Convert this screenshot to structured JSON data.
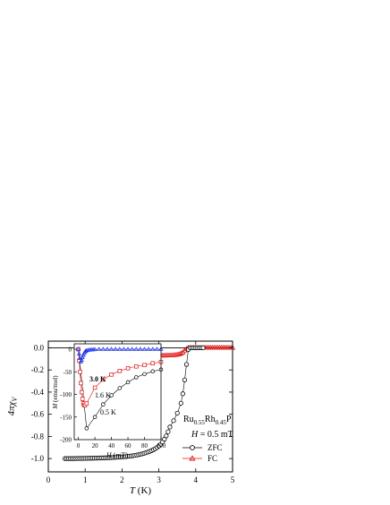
{
  "chart_data": [
    {
      "type": "scatter",
      "xlabel_italic": "T",
      "xlabel_unit": " (K)",
      "ylabel_main": "4πχ",
      "ylabel_sub": "V",
      "xlim": [
        0,
        5
      ],
      "ylim": [
        -1.12,
        0.06
      ],
      "xticks": [
        "0",
        "1",
        "2",
        "3",
        "4",
        "5"
      ],
      "yticks": [
        "0.0",
        "-0.2",
        "-0.4",
        "-0.6",
        "-0.8",
        "-1.0"
      ],
      "reference_line_y": 0,
      "annotation": {
        "compound_parts": [
          [
            "Ru",
            false
          ],
          [
            "0.55",
            true
          ],
          [
            "Rh",
            false
          ],
          [
            "0.45",
            true
          ],
          [
            "P",
            false
          ]
        ],
        "field_italic": "H",
        "field_rest": " = 0.5 mT"
      },
      "legend_position": "bottom-right",
      "series": [
        {
          "name": "ZFC",
          "marker": "circle",
          "color": "#000000",
          "x": [
            0.45,
            0.5,
            0.55,
            0.6,
            0.65,
            0.7,
            0.75,
            0.8,
            0.85,
            0.9,
            0.95,
            1.0,
            1.05,
            1.1,
            1.15,
            1.2,
            1.25,
            1.3,
            1.35,
            1.4,
            1.45,
            1.5,
            1.55,
            1.6,
            1.65,
            1.7,
            1.75,
            1.8,
            1.85,
            1.9,
            1.95,
            2.0,
            2.05,
            2.1,
            2.15,
            2.2,
            2.25,
            2.3,
            2.35,
            2.4,
            2.45,
            2.5,
            2.55,
            2.6,
            2.65,
            2.7,
            2.75,
            2.8,
            2.85,
            2.9,
            2.95,
            3.0,
            3.05,
            3.1,
            3.15,
            3.2,
            3.25,
            3.3,
            3.4,
            3.5,
            3.6,
            3.65,
            3.7,
            3.75,
            3.8,
            3.85,
            3.9,
            3.95,
            4.0,
            4.05,
            4.1,
            4.15,
            4.2
          ],
          "y": [
            -1.0,
            -1.0,
            -1.0,
            -1.0,
            -1.0,
            -1.0,
            -0.999,
            -0.999,
            -0.999,
            -0.999,
            -0.998,
            -0.998,
            -0.998,
            -0.997,
            -0.997,
            -0.997,
            -0.996,
            -0.996,
            -0.995,
            -0.995,
            -0.994,
            -0.994,
            -0.993,
            -0.992,
            -0.992,
            -0.991,
            -0.99,
            -0.989,
            -0.988,
            -0.987,
            -0.986,
            -0.985,
            -0.983,
            -0.982,
            -0.98,
            -0.978,
            -0.976,
            -0.974,
            -0.971,
            -0.968,
            -0.965,
            -0.961,
            -0.957,
            -0.952,
            -0.947,
            -0.941,
            -0.935,
            -0.928,
            -0.92,
            -0.911,
            -0.9,
            -0.887,
            -0.87,
            -0.85,
            -0.825,
            -0.795,
            -0.758,
            -0.715,
            -0.658,
            -0.59,
            -0.5,
            -0.415,
            -0.29,
            -0.15,
            -0.015,
            0.0,
            0.0,
            0.0,
            0.0,
            0.0,
            0.0,
            0.0,
            0.0
          ]
        },
        {
          "name": "FC",
          "marker": "triangle",
          "color": "#e01010",
          "x": [
            1.8,
            1.85,
            1.9,
            1.95,
            2.0,
            2.05,
            2.1,
            2.15,
            2.2,
            2.25,
            2.3,
            2.35,
            2.4,
            2.45,
            2.5,
            2.55,
            2.6,
            2.65,
            2.7,
            2.75,
            2.8,
            2.85,
            2.9,
            2.95,
            3.0,
            3.05,
            3.1,
            3.15,
            3.2,
            3.25,
            3.3,
            3.35,
            3.4,
            3.45,
            3.5,
            3.55,
            3.6,
            3.65,
            3.7,
            3.75,
            3.8,
            3.85,
            3.9,
            3.95,
            4.0,
            4.05,
            4.1,
            4.15,
            4.2,
            4.25,
            4.3,
            4.35,
            4.4,
            4.45,
            4.5,
            4.55,
            4.6,
            4.65,
            4.7,
            4.75,
            4.8,
            4.85,
            4.9,
            4.95,
            5.0
          ],
          "y": [
            -0.07,
            -0.07,
            -0.07,
            -0.07,
            -0.07,
            -0.07,
            -0.07,
            -0.07,
            -0.07,
            -0.07,
            -0.07,
            -0.07,
            -0.07,
            -0.07,
            -0.07,
            -0.07,
            -0.07,
            -0.07,
            -0.07,
            -0.07,
            -0.07,
            -0.07,
            -0.07,
            -0.07,
            -0.07,
            -0.07,
            -0.07,
            -0.07,
            -0.07,
            -0.069,
            -0.069,
            -0.068,
            -0.067,
            -0.065,
            -0.062,
            -0.058,
            -0.052,
            -0.042,
            -0.025,
            -0.01,
            0.0,
            0.0,
            0.0,
            0.0,
            0.0,
            0.0,
            0.0,
            0.0,
            0.0,
            0.0,
            0.0,
            0.0,
            0.0,
            0.0,
            0.0,
            0.0,
            0.0,
            0.0,
            0.0,
            0.0,
            0.0,
            0.0,
            0.0,
            0.0,
            0.0
          ]
        }
      ]
    },
    {
      "type": "line",
      "xlabel_italic": "H",
      "xlabel_unit": " (mT)",
      "ylabel_italic": "M",
      "ylabel_unit": " (emu/mol)",
      "xlim": [
        -5,
        100
      ],
      "ylim": [
        -200,
        12
      ],
      "xticks": [
        "0",
        "20",
        "40",
        "60",
        "80",
        "100"
      ],
      "yticks": [
        "0",
        "-50",
        "-100",
        "-150",
        "-200"
      ],
      "series": [
        {
          "name": "3.0 K",
          "color": "#1a2ee6",
          "marker": "triangle",
          "x": [
            0,
            1,
            2,
            3,
            4,
            5,
            6,
            7,
            8,
            9,
            10,
            12,
            14,
            16,
            18,
            20,
            25,
            30,
            35,
            40,
            45,
            50,
            55,
            60,
            65,
            70,
            75,
            80,
            85,
            90,
            95,
            100
          ],
          "y": [
            0,
            -10,
            -20,
            -28,
            -24,
            -18,
            -13,
            -9,
            -6,
            -4,
            -3,
            -2,
            -1.5,
            -1,
            -1,
            -0.5,
            0,
            0,
            0,
            0,
            0,
            0,
            0,
            0,
            0,
            0,
            0,
            0,
            0,
            0,
            0,
            0
          ]
        },
        {
          "name": "1.6 K",
          "color": "#e01010",
          "marker": "square",
          "x": [
            0,
            1,
            2,
            3,
            4,
            5,
            6,
            7,
            8,
            10,
            20,
            30,
            40,
            50,
            60,
            70,
            80,
            90,
            100
          ],
          "y": [
            0,
            -25,
            -50,
            -75,
            -95,
            -110,
            -120,
            -124,
            -124,
            -120,
            -85,
            -67,
            -56,
            -48,
            -42,
            -38,
            -35,
            -31,
            -28
          ]
        },
        {
          "name": "0.5 K",
          "color": "#000000",
          "marker": "circle",
          "x": [
            0,
            10,
            20,
            30,
            40,
            50,
            60,
            70,
            80,
            90,
            100
          ],
          "y": [
            0,
            -175,
            -150,
            -122,
            -102,
            -86,
            -73,
            -62,
            -55,
            -49,
            -45
          ]
        }
      ]
    }
  ]
}
